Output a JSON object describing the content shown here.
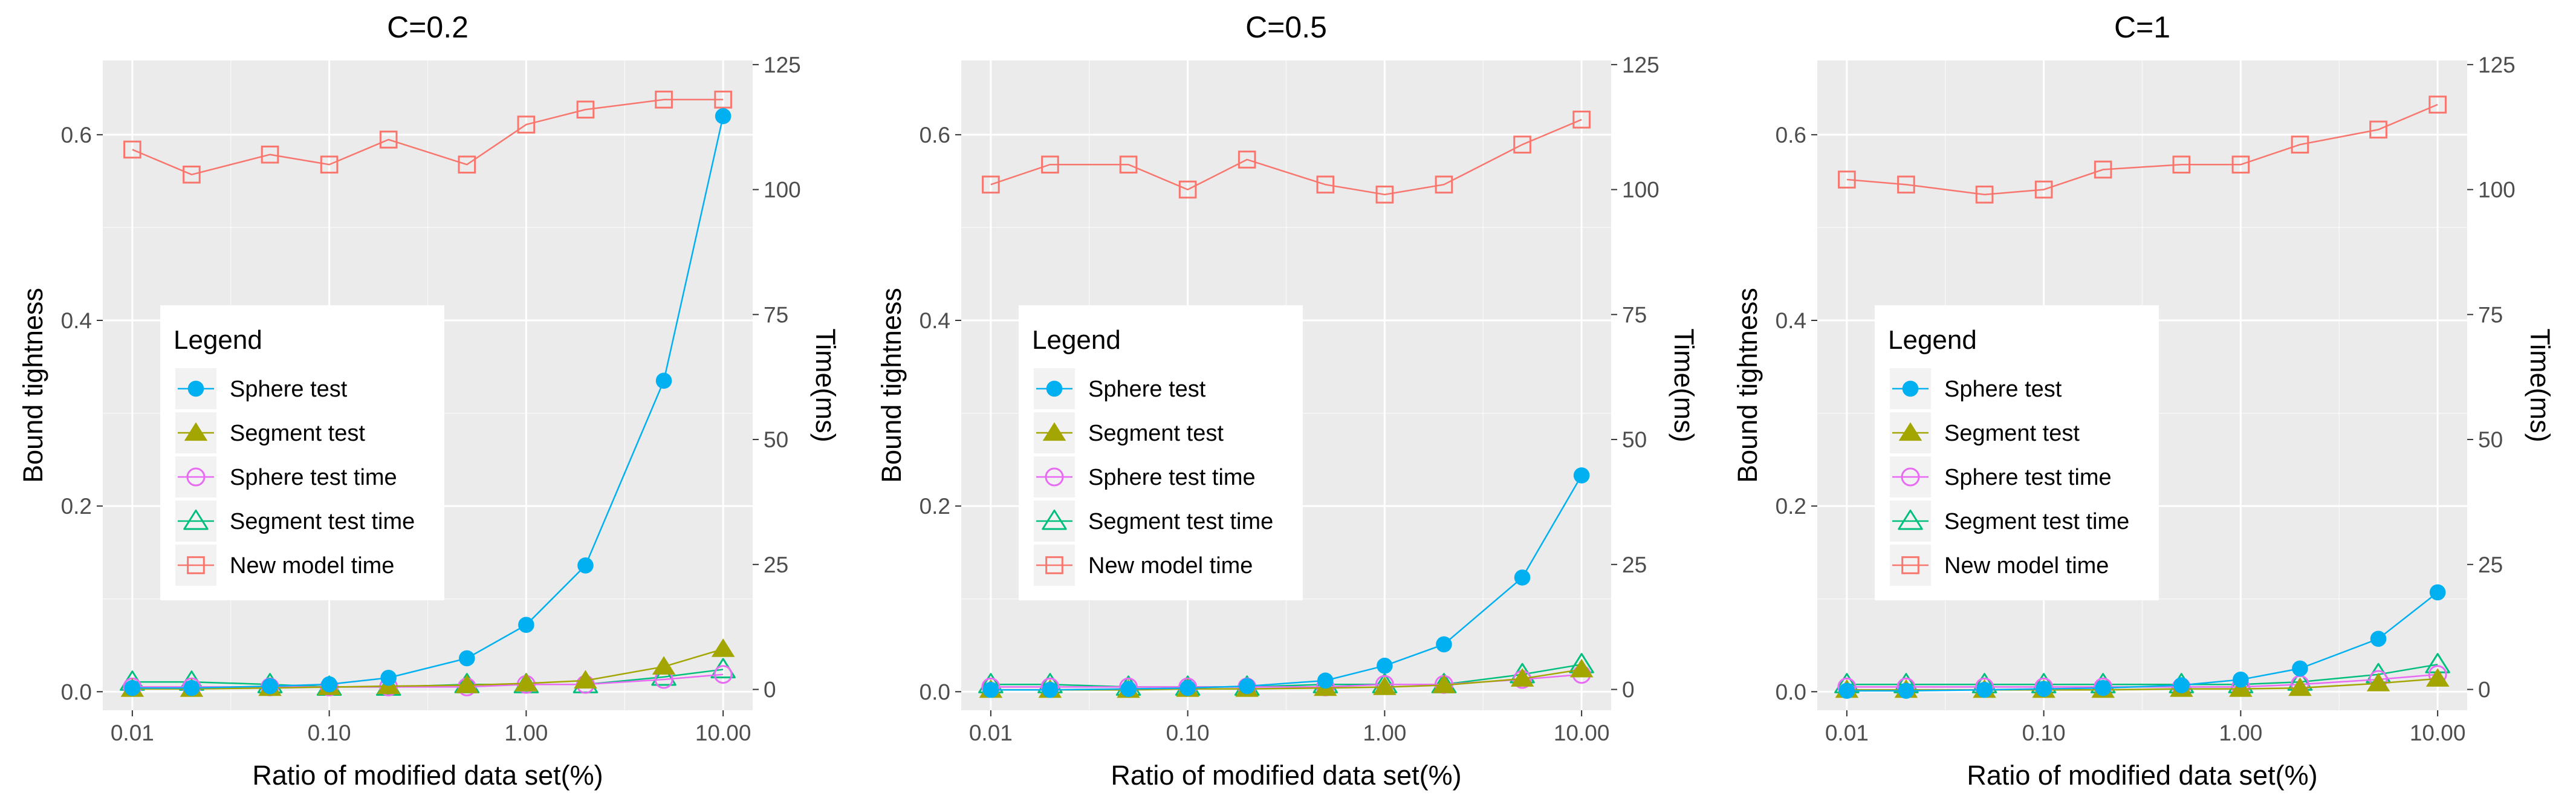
{
  "figure": {
    "colors": {
      "panel_bg": "#EBEBEB",
      "grid_major": "#FFFFFF",
      "tick_text": "#4D4D4D",
      "axis_title": "#000000",
      "sphere": "#00B0F0",
      "segment": "#A3A500",
      "sphere_time": "#E76BF3",
      "segment_time": "#00BF7D",
      "new_model_time": "#F8766D"
    }
  },
  "legend": {
    "title": "Legend",
    "entries": [
      {
        "label": "Sphere test",
        "series": "sphere",
        "shape": "filled-circle-icon"
      },
      {
        "label": "Segment test",
        "series": "segment",
        "shape": "filled-triangle-icon"
      },
      {
        "label": "Sphere test time",
        "series": "sphere_time",
        "shape": "open-circle-icon"
      },
      {
        "label": "Segment test time",
        "series": "segment_time",
        "shape": "open-triangle-icon"
      },
      {
        "label": "New model time",
        "series": "new_model_time",
        "shape": "open-square-icon"
      }
    ]
  },
  "chart_data": [
    {
      "type": "line",
      "title": "C=0.2",
      "xlabel": "Ratio of modified data set(%)",
      "ylabel": "Bound tightness",
      "y2label": "Time(ms)",
      "x_scale": "log",
      "x": [
        0.01,
        0.02,
        0.05,
        0.1,
        0.2,
        0.5,
        1,
        2,
        5,
        10
      ],
      "xticks": [
        "0.01",
        "0.10",
        "1.00",
        "10.00"
      ],
      "ylim": [
        -0.02,
        0.68
      ],
      "yticks": [
        "0.0",
        "0.2",
        "0.4",
        "0.6"
      ],
      "y2lim": [
        -4.17,
        125.83
      ],
      "y2ticks": [
        "0",
        "25",
        "50",
        "75",
        "100",
        "125"
      ],
      "grid": true,
      "legend_position": "left-middle",
      "series": [
        {
          "name": "Sphere test",
          "axis": "left",
          "values": [
            0.004,
            0.004,
            0.006,
            0.008,
            0.015,
            0.036,
            0.072,
            0.136,
            0.335,
            0.62
          ]
        },
        {
          "name": "Segment test",
          "axis": "left",
          "values": [
            0.003,
            0.003,
            0.004,
            0.005,
            0.006,
            0.007,
            0.009,
            0.012,
            0.027,
            0.046
          ]
        },
        {
          "name": "Sphere test time",
          "axis": "right",
          "values": [
            0.5,
            0.5,
            0.5,
            0.5,
            0.5,
            0.5,
            1,
            1,
            2,
            3
          ]
        },
        {
          "name": "Segment test time",
          "axis": "right",
          "values": [
            1.5,
            1.5,
            1,
            0.5,
            0.5,
            1,
            1,
            1,
            2.5,
            4
          ]
        },
        {
          "name": "New model time",
          "axis": "right",
          "values": [
            108,
            103,
            107,
            105,
            110,
            105,
            113,
            116,
            118,
            118
          ]
        }
      ]
    },
    {
      "type": "line",
      "title": "C=0.5",
      "xlabel": "Ratio of modified data set(%)",
      "ylabel": "Bound tightness",
      "y2label": "Time(ms)",
      "x_scale": "log",
      "x": [
        0.01,
        0.02,
        0.05,
        0.1,
        0.2,
        0.5,
        1,
        2,
        5,
        10
      ],
      "xticks": [
        "0.01",
        "0.10",
        "1.00",
        "10.00"
      ],
      "ylim": [
        -0.02,
        0.68
      ],
      "yticks": [
        "0.0",
        "0.2",
        "0.4",
        "0.6"
      ],
      "y2lim": [
        -4.17,
        125.83
      ],
      "y2ticks": [
        "0",
        "25",
        "50",
        "75",
        "100",
        "125"
      ],
      "grid": true,
      "legend_position": "left-middle",
      "series": [
        {
          "name": "Sphere test",
          "axis": "left",
          "values": [
            0.002,
            0.002,
            0.003,
            0.004,
            0.006,
            0.012,
            0.028,
            0.051,
            0.123,
            0.233
          ]
        },
        {
          "name": "Segment test",
          "axis": "left",
          "values": [
            0.002,
            0.002,
            0.002,
            0.003,
            0.003,
            0.004,
            0.005,
            0.007,
            0.014,
            0.024
          ]
        },
        {
          "name": "Sphere test time",
          "axis": "right",
          "values": [
            0.5,
            0.5,
            0.5,
            0.5,
            0.5,
            0.5,
            1,
            1,
            2,
            3
          ]
        },
        {
          "name": "Segment test time",
          "axis": "right",
          "values": [
            1,
            1,
            0.5,
            0.5,
            0.5,
            1,
            1,
            1,
            3,
            5
          ]
        },
        {
          "name": "New model time",
          "axis": "right",
          "values": [
            101,
            105,
            105,
            100,
            106,
            101,
            99,
            101,
            109,
            114
          ]
        }
      ]
    },
    {
      "type": "line",
      "title": "C=1",
      "xlabel": "Ratio of modified data set(%)",
      "ylabel": "Bound tightness",
      "y2label": "Time(ms)",
      "x_scale": "log",
      "x": [
        0.01,
        0.02,
        0.05,
        0.1,
        0.2,
        0.5,
        1,
        2,
        5,
        10
      ],
      "xticks": [
        "0.01",
        "0.10",
        "1.00",
        "10.00"
      ],
      "ylim": [
        -0.02,
        0.68
      ],
      "yticks": [
        "0.0",
        "0.2",
        "0.4",
        "0.6"
      ],
      "y2lim": [
        -4.17,
        125.83
      ],
      "y2ticks": [
        "0",
        "25",
        "50",
        "75",
        "100",
        "125"
      ],
      "grid": true,
      "legend_position": "left-middle",
      "series": [
        {
          "name": "Sphere test",
          "axis": "left",
          "values": [
            0.001,
            0.001,
            0.002,
            0.003,
            0.004,
            0.007,
            0.013,
            0.025,
            0.057,
            0.107
          ]
        },
        {
          "name": "Segment test",
          "axis": "left",
          "values": [
            0.002,
            0.002,
            0.002,
            0.002,
            0.002,
            0.003,
            0.003,
            0.004,
            0.009,
            0.014
          ]
        },
        {
          "name": "Sphere test time",
          "axis": "right",
          "values": [
            0.5,
            0.5,
            0.5,
            0.5,
            0.5,
            0.5,
            0.5,
            1,
            2,
            3
          ]
        },
        {
          "name": "Segment test time",
          "axis": "right",
          "values": [
            1,
            1,
            1,
            1,
            1,
            1,
            1,
            1.5,
            3,
            5
          ]
        },
        {
          "name": "New model time",
          "axis": "right",
          "values": [
            102,
            101,
            99,
            100,
            104,
            105,
            105,
            109,
            112,
            117
          ]
        }
      ]
    }
  ]
}
